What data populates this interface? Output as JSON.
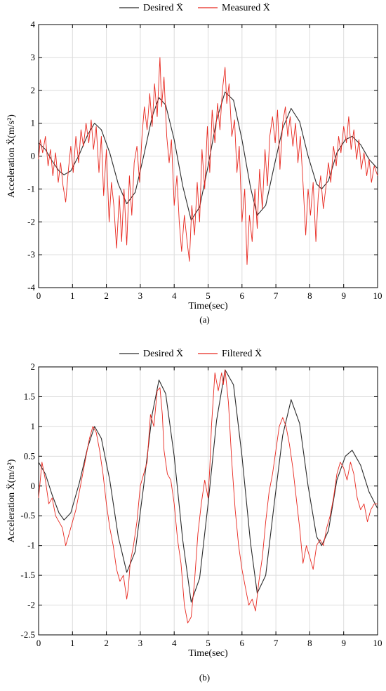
{
  "chart_data": [
    {
      "type": "line",
      "caption": "(a)",
      "xlabel": "Time(sec)",
      "ylabel": "Acceleration Ẍ(m/s²)",
      "xlim": [
        0,
        10
      ],
      "ylim": [
        -4,
        4
      ],
      "xticks": [
        "0",
        "1",
        "2",
        "3",
        "4",
        "5",
        "6",
        "7",
        "8",
        "9",
        "10"
      ],
      "yticks": [
        "-4",
        "-3",
        "-2",
        "-1",
        "0",
        "1",
        "2",
        "3",
        "4"
      ],
      "grid": true,
      "legend_position": "top",
      "series": [
        {
          "name": "Desired Ẍ",
          "color": "#2b2b2b",
          "x": [
            0,
            0.2,
            0.4,
            0.6,
            0.75,
            0.95,
            1.2,
            1.45,
            1.65,
            1.85,
            2.1,
            2.35,
            2.6,
            2.85,
            3.1,
            3.35,
            3.55,
            3.75,
            4.0,
            4.25,
            4.5,
            4.75,
            5.0,
            5.25,
            5.5,
            5.75,
            6.0,
            6.25,
            6.45,
            6.7,
            6.95,
            7.2,
            7.45,
            7.7,
            7.95,
            8.2,
            8.35,
            8.55,
            8.8,
            9.05,
            9.25,
            9.5,
            9.75,
            10
          ],
          "y": [
            0.4,
            0.2,
            -0.15,
            -0.45,
            -0.57,
            -0.45,
            0.05,
            0.65,
            1.0,
            0.8,
            0.1,
            -0.85,
            -1.45,
            -1.1,
            0.0,
            1.2,
            1.78,
            1.55,
            0.5,
            -0.9,
            -1.95,
            -1.55,
            -0.3,
            1.1,
            1.95,
            1.7,
            0.5,
            -0.95,
            -1.8,
            -1.5,
            -0.3,
            0.85,
            1.45,
            1.05,
            0.0,
            -0.85,
            -1.0,
            -0.75,
            0.1,
            0.5,
            0.6,
            0.35,
            -0.1,
            -0.38
          ]
        },
        {
          "name": "Measured Ẍ",
          "color": "#e8271e",
          "x": [
            0,
            0.05,
            0.12,
            0.2,
            0.28,
            0.35,
            0.42,
            0.5,
            0.58,
            0.65,
            0.72,
            0.8,
            0.88,
            0.95,
            1.02,
            1.1,
            1.18,
            1.25,
            1.32,
            1.4,
            1.48,
            1.55,
            1.62,
            1.7,
            1.78,
            1.85,
            1.92,
            2.0,
            2.08,
            2.15,
            2.22,
            2.3,
            2.38,
            2.45,
            2.52,
            2.6,
            2.68,
            2.75,
            2.82,
            2.9,
            2.98,
            3.05,
            3.12,
            3.2,
            3.28,
            3.35,
            3.42,
            3.5,
            3.58,
            3.63,
            3.7,
            3.78,
            3.85,
            3.92,
            4.0,
            4.08,
            4.15,
            4.22,
            4.3,
            4.38,
            4.45,
            4.52,
            4.6,
            4.68,
            4.75,
            4.82,
            4.9,
            4.98,
            5.05,
            5.12,
            5.2,
            5.28,
            5.35,
            5.42,
            5.5,
            5.55,
            5.62,
            5.7,
            5.78,
            5.85,
            5.92,
            6.0,
            6.08,
            6.15,
            6.22,
            6.3,
            6.38,
            6.45,
            6.52,
            6.6,
            6.68,
            6.75,
            6.82,
            6.9,
            6.98,
            7.05,
            7.12,
            7.2,
            7.28,
            7.35,
            7.42,
            7.5,
            7.58,
            7.65,
            7.72,
            7.8,
            7.88,
            7.95,
            8.02,
            8.1,
            8.18,
            8.25,
            8.32,
            8.4,
            8.48,
            8.55,
            8.62,
            8.7,
            8.78,
            8.85,
            8.92,
            9.0,
            9.08,
            9.15,
            9.22,
            9.3,
            9.38,
            9.45,
            9.52,
            9.6,
            9.68,
            9.75,
            9.82,
            9.9,
            10
          ],
          "y": [
            -0.1,
            0.5,
            0.1,
            0.6,
            -0.3,
            0.2,
            -0.6,
            0.1,
            -0.8,
            -0.2,
            -0.9,
            -1.4,
            -0.4,
            0.3,
            -0.5,
            0.6,
            -0.2,
            0.8,
            0.3,
            1.0,
            0.4,
            1.1,
            0.2,
            0.9,
            -0.5,
            0.6,
            -1.2,
            0.2,
            -2.0,
            -0.8,
            -1.5,
            -2.8,
            -1.2,
            -2.6,
            -1.0,
            -2.7,
            -0.6,
            -1.8,
            -0.2,
            0.3,
            -0.8,
            0.6,
            1.5,
            0.8,
            1.9,
            0.9,
            2.2,
            1.2,
            3.0,
            1.5,
            2.4,
            0.6,
            -0.2,
            0.5,
            -1.5,
            -0.6,
            -2.0,
            -2.9,
            -1.8,
            -2.6,
            -3.2,
            -1.5,
            -2.4,
            -0.8,
            -2.0,
            0.2,
            -1.0,
            0.9,
            -0.5,
            1.4,
            0.4,
            1.6,
            0.8,
            2.0,
            2.7,
            1.6,
            2.2,
            0.6,
            1.1,
            -0.5,
            0.3,
            -2.0,
            -1.0,
            -3.3,
            -1.8,
            -2.6,
            -1.0,
            -2.2,
            -0.4,
            -1.6,
            0.2,
            -0.9,
            0.6,
            1.2,
            0.4,
            1.4,
            -0.4,
            1.0,
            1.5,
            0.6,
            1.2,
            0.3,
            1.0,
            -0.2,
            0.6,
            -0.8,
            -2.4,
            -1.0,
            -1.8,
            -0.8,
            -2.6,
            -1.2,
            -0.6,
            -1.6,
            -0.9,
            -0.2,
            -0.8,
            0.3,
            -0.3,
            0.6,
            0.1,
            0.9,
            0.4,
            1.2,
            0.2,
            0.8,
            -0.1,
            0.5,
            -0.4,
            0.1,
            -0.6,
            -0.1,
            -0.8,
            -0.3,
            -0.6
          ]
        }
      ]
    },
    {
      "type": "line",
      "caption": "(b)",
      "xlabel": "Time(sec)",
      "ylabel": "Acceleration Ẍ(m/s²)",
      "xlim": [
        0,
        10
      ],
      "ylim": [
        -2.5,
        2
      ],
      "xticks": [
        "0",
        "1",
        "2",
        "3",
        "4",
        "5",
        "6",
        "7",
        "8",
        "9",
        "10"
      ],
      "yticks": [
        "-2.5",
        "-2",
        "-1.5",
        "-1",
        "-0.5",
        "0",
        "0.5",
        "1",
        "1.5",
        "2"
      ],
      "grid": true,
      "legend_position": "top",
      "series": [
        {
          "name": "Desired Ẍ",
          "color": "#2b2b2b",
          "x": [
            0,
            0.2,
            0.4,
            0.6,
            0.75,
            0.95,
            1.2,
            1.45,
            1.65,
            1.85,
            2.1,
            2.35,
            2.6,
            2.85,
            3.1,
            3.35,
            3.55,
            3.75,
            4.0,
            4.25,
            4.5,
            4.75,
            5.0,
            5.25,
            5.5,
            5.75,
            6.0,
            6.25,
            6.45,
            6.7,
            6.95,
            7.2,
            7.45,
            7.7,
            7.95,
            8.2,
            8.35,
            8.55,
            8.8,
            9.05,
            9.25,
            9.5,
            9.75,
            10
          ],
          "y": [
            0.4,
            0.2,
            -0.15,
            -0.45,
            -0.57,
            -0.45,
            0.05,
            0.65,
            1.0,
            0.8,
            0.1,
            -0.85,
            -1.45,
            -1.1,
            0.0,
            1.2,
            1.78,
            1.55,
            0.5,
            -0.9,
            -1.95,
            -1.55,
            -0.3,
            1.1,
            1.95,
            1.7,
            0.5,
            -0.95,
            -1.8,
            -1.5,
            -0.3,
            0.85,
            1.45,
            1.05,
            0.0,
            -0.85,
            -1.0,
            -0.75,
            0.1,
            0.5,
            0.6,
            0.35,
            -0.1,
            -0.38
          ]
        },
        {
          "name": "Filtered Ẍ",
          "color": "#e8271e",
          "x": [
            0,
            0.1,
            0.2,
            0.3,
            0.4,
            0.5,
            0.6,
            0.7,
            0.8,
            0.9,
            1.0,
            1.1,
            1.2,
            1.3,
            1.4,
            1.5,
            1.6,
            1.7,
            1.8,
            1.9,
            2.0,
            2.1,
            2.2,
            2.3,
            2.4,
            2.5,
            2.6,
            2.65,
            2.7,
            2.8,
            2.9,
            3.0,
            3.1,
            3.2,
            3.3,
            3.4,
            3.5,
            3.58,
            3.65,
            3.7,
            3.8,
            3.9,
            4.0,
            4.1,
            4.2,
            4.3,
            4.4,
            4.5,
            4.6,
            4.7,
            4.8,
            4.9,
            5.0,
            5.05,
            5.1,
            5.2,
            5.3,
            5.4,
            5.45,
            5.5,
            5.6,
            5.7,
            5.8,
            5.9,
            6.0,
            6.1,
            6.2,
            6.3,
            6.4,
            6.5,
            6.6,
            6.7,
            6.8,
            6.9,
            7.0,
            7.1,
            7.2,
            7.3,
            7.4,
            7.5,
            7.6,
            7.7,
            7.8,
            7.9,
            8.0,
            8.1,
            8.2,
            8.3,
            8.4,
            8.5,
            8.6,
            8.7,
            8.8,
            8.9,
            9.0,
            9.1,
            9.2,
            9.3,
            9.4,
            9.5,
            9.6,
            9.7,
            9.8,
            9.9,
            10
          ],
          "y": [
            -0.2,
            0.4,
            0.1,
            -0.3,
            -0.2,
            -0.5,
            -0.6,
            -0.7,
            -1.0,
            -0.8,
            -0.6,
            -0.4,
            -0.1,
            0.2,
            0.5,
            0.8,
            1.0,
            0.9,
            0.6,
            0.2,
            -0.3,
            -0.7,
            -1.0,
            -1.4,
            -1.6,
            -1.5,
            -1.9,
            -1.7,
            -1.3,
            -1.0,
            -0.6,
            0.0,
            0.2,
            0.4,
            1.2,
            1.0,
            1.6,
            1.65,
            1.2,
            0.6,
            0.2,
            0.1,
            -0.3,
            -0.9,
            -1.3,
            -2.0,
            -2.3,
            -2.2,
            -1.6,
            -0.8,
            -0.3,
            0.1,
            -0.2,
            0.3,
            1.0,
            1.9,
            1.6,
            1.9,
            1.7,
            1.95,
            1.4,
            0.4,
            -0.4,
            -1.0,
            -1.4,
            -1.7,
            -2.0,
            -1.9,
            -2.1,
            -1.6,
            -1.2,
            -0.6,
            -0.1,
            0.2,
            0.6,
            1.0,
            1.15,
            1.0,
            0.7,
            0.3,
            -0.2,
            -0.7,
            -1.3,
            -1.0,
            -1.2,
            -1.4,
            -1.0,
            -0.9,
            -1.0,
            -0.7,
            -0.5,
            -0.2,
            0.2,
            0.4,
            0.3,
            0.1,
            0.4,
            0.2,
            -0.2,
            -0.4,
            -0.3,
            -0.6,
            -0.4,
            -0.3,
            -0.3
          ]
        }
      ]
    }
  ]
}
